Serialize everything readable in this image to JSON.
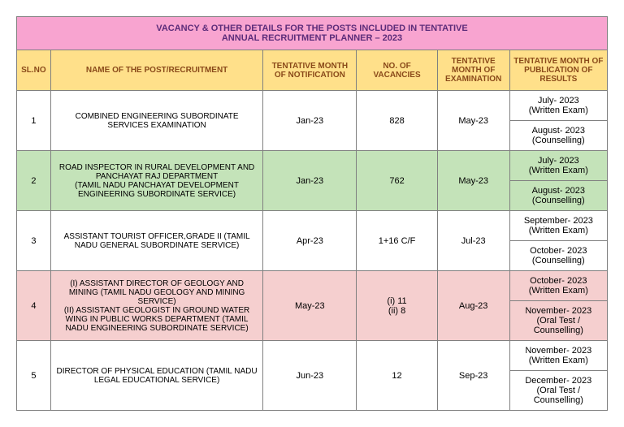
{
  "title": {
    "line1": "VACANCY & OTHER DETAILS FOR THE POSTS INCLUDED IN TENTATIVE",
    "line2": "ANNUAL RECRUITMENT PLANNER – 2023"
  },
  "headers": {
    "slno": "SL.NO",
    "post": "NAME OF THE POST/RECRUITMENT",
    "notif": "TENTATIVE MONTH OF NOTIFICATION",
    "vac": "NO. OF VACANCIES",
    "exam": "TENTATIVE MONTH OF EXAMINATION",
    "res": "TENTATIVE MONTH OF PUBLICATION OF RESULTS"
  },
  "colors": {
    "title_bg": "#f8a4d0",
    "title_text": "#5c2c7a",
    "header_bg": "#ffe08a",
    "header_text": "#8a4a1a",
    "row_white": "#ffffff",
    "row_green": "#c4e3b9",
    "row_pink": "#f5cfcf",
    "border": "#808080"
  },
  "rows": [
    {
      "slno": "1",
      "post": "COMBINED ENGINEERING SUBORDINATE SERVICES EXAMINATION",
      "notif": "Jan-23",
      "vac": "828",
      "exam": "May-23",
      "res1": "July- 2023\n(Written Exam)",
      "res2": "August- 2023\n(Counselling)",
      "shade": "white"
    },
    {
      "slno": "2",
      "post": "ROAD INSPECTOR IN  RURAL DEVELOPMENT AND PANCHAYAT RAJ DEPARTMENT\n(TAMIL NADU PANCHAYAT DEVELOPMENT ENGINEERING SUBORDINATE SERVICE)",
      "notif": "Jan-23",
      "vac": "762",
      "exam": "May-23",
      "res1": "July- 2023\n(Written Exam)",
      "res2": "August- 2023\n(Counselling)",
      "shade": "green"
    },
    {
      "slno": "3",
      "post": "ASSISTANT TOURIST OFFICER,GRADE II         (TAMIL NADU GENERAL SUBORDINATE SERVICE)",
      "notif": "Apr-23",
      "vac": "1+16 C/F",
      "exam": "Jul-23",
      "res1": "September- 2023\n(Written Exam)",
      "res2": "October- 2023\n(Counselling)",
      "shade": "white"
    },
    {
      "slno": "4",
      "post": "(I) ASSISTANT DIRECTOR OF GEOLOGY AND MINING (TAMIL NADU GEOLOGY AND MINING SERVICE)\n(II) ASSISTANT GEOLOGIST IN GROUND WATER WING IN PUBLIC WORKS DEPARTMENT     (TAMIL NADU ENGINEERING SUBORDINATE SERVICE)",
      "notif": "May-23",
      "vac": "(i) 11\n(ii) 8",
      "exam": "Aug-23",
      "res1": "October- 2023\n(Written Exam)",
      "res2": "November- 2023\n(Oral Test / Counselling)",
      "shade": "pink"
    },
    {
      "slno": "5",
      "post": "DIRECTOR OF PHYSICAL EDUCATION (TAMIL NADU LEGAL EDUCATIONAL SERVICE)",
      "notif": "Jun-23",
      "vac": "12",
      "exam": "Sep-23",
      "res1": "November- 2023\n(Written Exam)",
      "res2": "December- 2023\n(Oral Test / Counselling)",
      "shade": "white"
    }
  ]
}
